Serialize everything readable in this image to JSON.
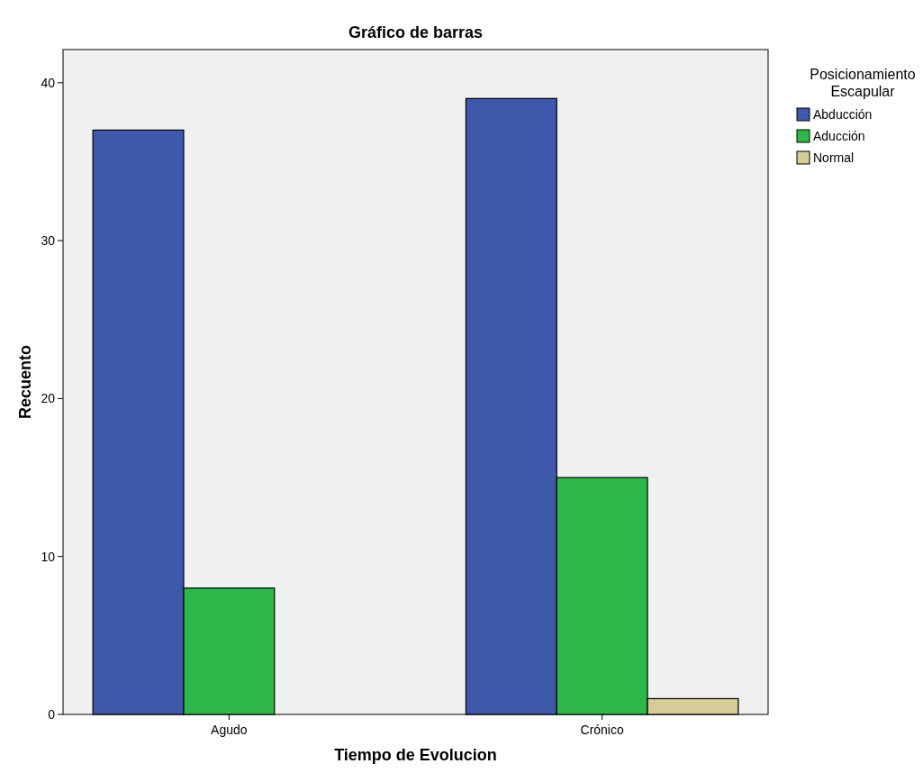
{
  "chart_data": {
    "type": "bar",
    "title": "Gráfico de barras",
    "xlabel": "Tiempo de Evolucion",
    "ylabel": "Recuento",
    "legend_title": "Posicionamiento Escapular",
    "categories": [
      "Agudo",
      "Crónico"
    ],
    "series": [
      {
        "name": "Abducción",
        "color": "#3e58ac",
        "values": [
          37,
          39
        ]
      },
      {
        "name": "Aducción",
        "color": "#2db84a",
        "values": [
          8,
          15
        ]
      },
      {
        "name": "Normal",
        "color": "#d5cc97",
        "values": [
          0,
          1
        ]
      }
    ],
    "ylim": [
      0,
      42.1
    ],
    "yticks": [
      0,
      10,
      20,
      30,
      40
    ],
    "grid": false,
    "legend": "right"
  }
}
